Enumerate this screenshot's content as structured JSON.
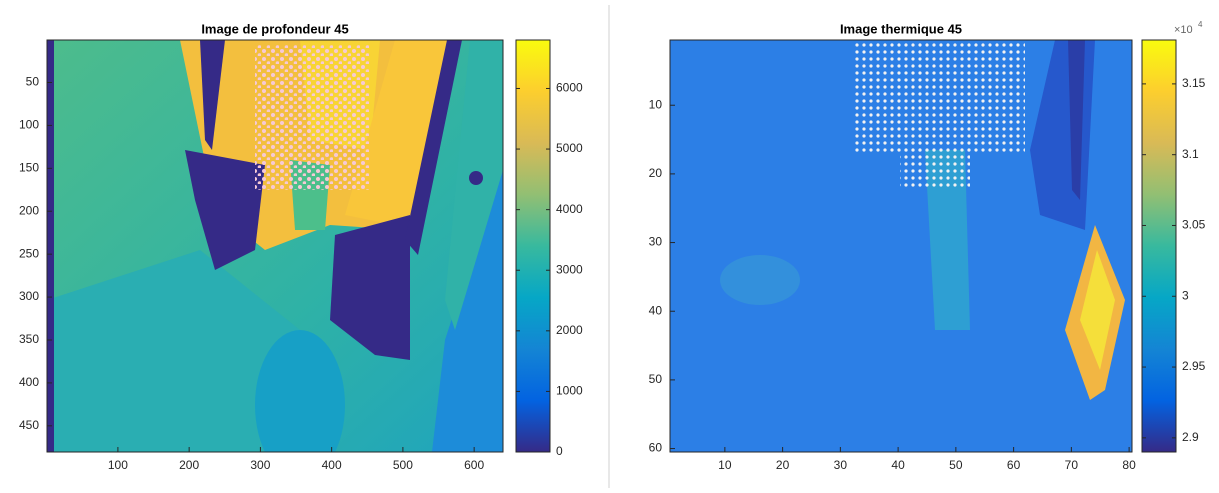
{
  "chart_data": [
    {
      "type": "image",
      "title": "Image de profondeur 45",
      "xlim": [
        0.5,
        640.5
      ],
      "xticks": [
        100,
        200,
        300,
        400,
        500,
        600
      ],
      "ylim": [
        480.5,
        0.5
      ],
      "yticks": [
        50,
        100,
        150,
        200,
        250,
        300,
        350,
        400,
        450
      ],
      "colorbar": {
        "lim": [
          0,
          6800
        ],
        "ticks": [
          0,
          1000,
          2000,
          3000,
          4000,
          5000,
          6000
        ]
      }
    },
    {
      "type": "image",
      "title": "Image thermique 45",
      "xlim": [
        0.5,
        80.5
      ],
      "xticks": [
        10,
        20,
        30,
        40,
        50,
        60,
        70,
        80
      ],
      "ylim": [
        60.5,
        0.5
      ],
      "yticks": [
        10,
        20,
        30,
        40,
        50,
        60
      ],
      "colorbar": {
        "lim": [
          28900,
          31810
        ],
        "ticks": [
          {
            "value": 29000,
            "label": "2.9"
          },
          {
            "value": 29500,
            "label": "2.95"
          },
          {
            "value": 30000,
            "label": "3"
          },
          {
            "value": 30500,
            "label": "3.05"
          },
          {
            "value": 31000,
            "label": "3.1"
          },
          {
            "value": 31500,
            "label": "3.15"
          }
        ],
        "multiplier": {
          "base": "×10",
          "exponent": "4"
        }
      }
    }
  ]
}
